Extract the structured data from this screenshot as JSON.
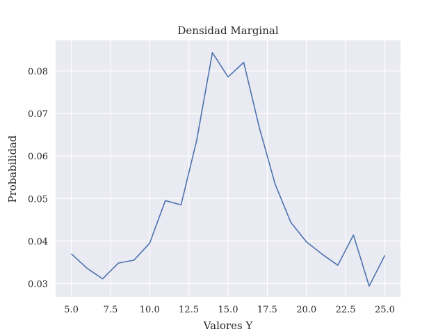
{
  "chart_data": {
    "type": "line",
    "title": "Densidad Marginal",
    "xlabel": "Valores Y",
    "ylabel": "Probabilidad",
    "xlim": [
      4.0,
      26.0
    ],
    "ylim": [
      0.0268,
      0.0872
    ],
    "x_ticks": [
      5.0,
      7.5,
      10.0,
      12.5,
      15.0,
      17.5,
      20.0,
      22.5,
      25.0
    ],
    "x_tick_labels": [
      "5.0",
      "7.5",
      "10.0",
      "12.5",
      "15.0",
      "17.5",
      "20.0",
      "22.5",
      "25.0"
    ],
    "y_ticks": [
      0.03,
      0.04,
      0.05,
      0.06,
      0.07,
      0.08
    ],
    "y_tick_labels": [
      "0.03",
      "0.04",
      "0.05",
      "0.06",
      "0.07",
      "0.08"
    ],
    "grid": true,
    "series": [
      {
        "color": "#4c72b0",
        "x": [
          5,
          6,
          7,
          8,
          9,
          10,
          11,
          12,
          13,
          14,
          15,
          16,
          17,
          18,
          19,
          20,
          21,
          22,
          23,
          24,
          25
        ],
        "y": [
          0.037,
          0.0336,
          0.0311,
          0.0348,
          0.0355,
          0.0395,
          0.0495,
          0.0485,
          0.0637,
          0.0843,
          0.0786,
          0.082,
          0.0666,
          0.0534,
          0.0444,
          0.0398,
          0.0369,
          0.0343,
          0.0414,
          0.0294,
          0.0366
        ]
      }
    ]
  }
}
